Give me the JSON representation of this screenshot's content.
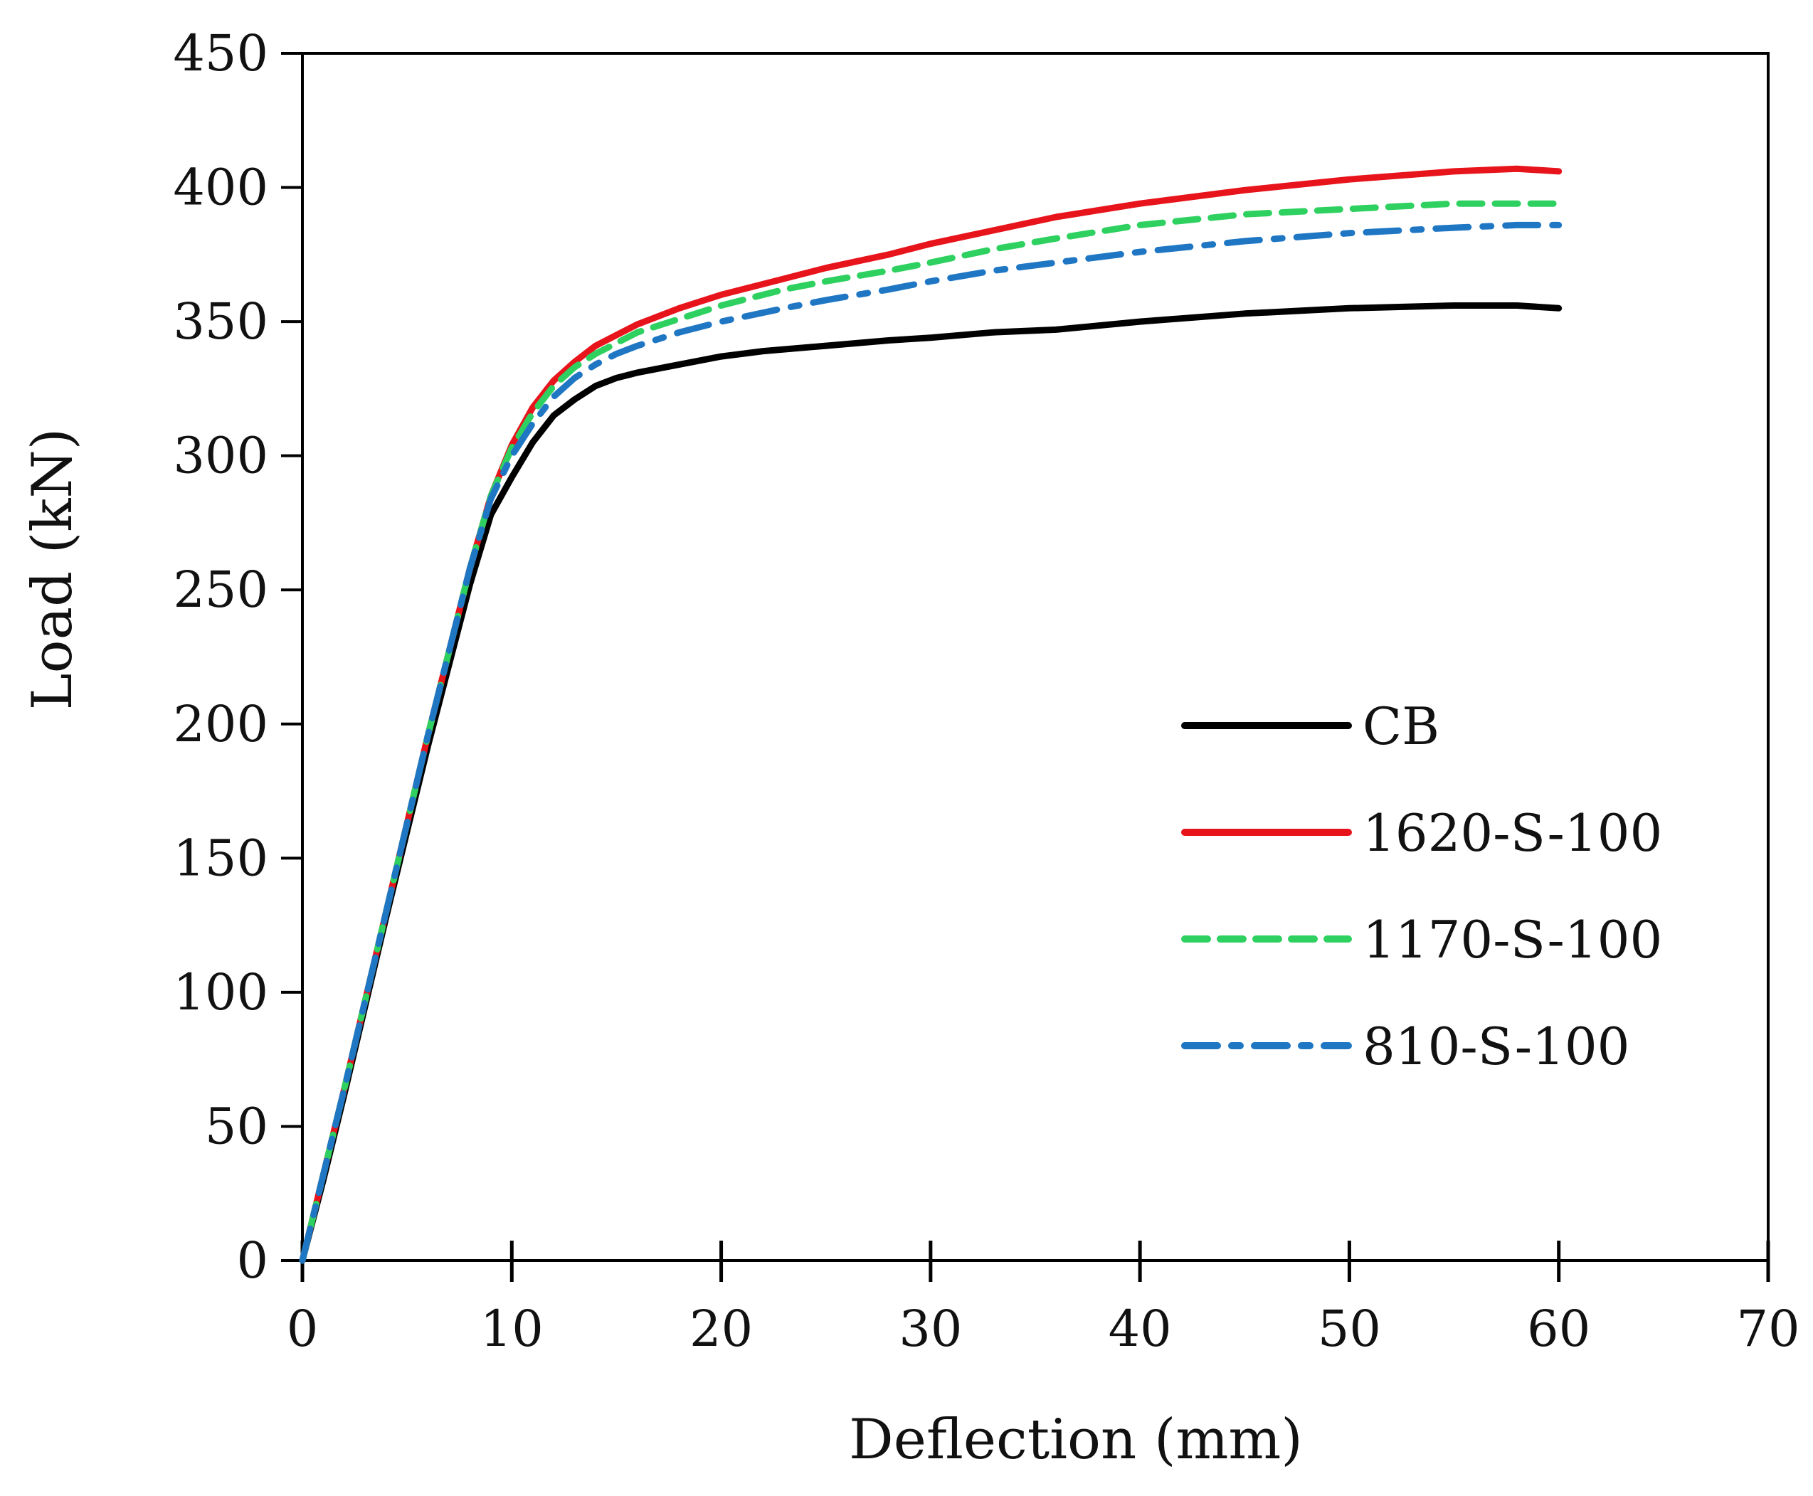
{
  "chart_data": {
    "type": "line",
    "title": "",
    "xlabel": "Deflection (mm)",
    "ylabel": "Load (kN)",
    "xlim": [
      0,
      70
    ],
    "ylim": [
      0,
      450
    ],
    "xticks": [
      "0",
      "10",
      "20",
      "30",
      "40",
      "50",
      "60",
      "70"
    ],
    "yticks": [
      "0",
      "50",
      "100",
      "150",
      "200",
      "250",
      "300",
      "350",
      "400",
      "450"
    ],
    "grid": false,
    "legend_position": "right",
    "series": [
      {
        "name": "CB",
        "color": "#000000",
        "dash": "solid",
        "points": [
          [
            0,
            0
          ],
          [
            1,
            30
          ],
          [
            2,
            62
          ],
          [
            3,
            95
          ],
          [
            4,
            128
          ],
          [
            5,
            160
          ],
          [
            6,
            192
          ],
          [
            7,
            222
          ],
          [
            8,
            252
          ],
          [
            9,
            278
          ],
          [
            10,
            292
          ],
          [
            11,
            305
          ],
          [
            12,
            315
          ],
          [
            13,
            321
          ],
          [
            14,
            326
          ],
          [
            15,
            329
          ],
          [
            16,
            331
          ],
          [
            18,
            334
          ],
          [
            20,
            337
          ],
          [
            22,
            339
          ],
          [
            25,
            341
          ],
          [
            28,
            343
          ],
          [
            30,
            344
          ],
          [
            33,
            346
          ],
          [
            36,
            347
          ],
          [
            40,
            350
          ],
          [
            45,
            353
          ],
          [
            50,
            355
          ],
          [
            55,
            356
          ],
          [
            58,
            356
          ],
          [
            60,
            355
          ]
        ]
      },
      {
        "name": "1620-S-100",
        "color": "#e8141b",
        "dash": "solid",
        "points": [
          [
            0,
            0
          ],
          [
            1,
            32
          ],
          [
            2,
            64
          ],
          [
            3,
            97
          ],
          [
            4,
            130
          ],
          [
            5,
            163
          ],
          [
            6,
            196
          ],
          [
            7,
            227
          ],
          [
            8,
            258
          ],
          [
            9,
            285
          ],
          [
            10,
            304
          ],
          [
            11,
            318
          ],
          [
            12,
            328
          ],
          [
            13,
            335
          ],
          [
            14,
            341
          ],
          [
            15,
            345
          ],
          [
            16,
            349
          ],
          [
            18,
            355
          ],
          [
            20,
            360
          ],
          [
            23,
            366
          ],
          [
            25,
            370
          ],
          [
            28,
            375
          ],
          [
            30,
            379
          ],
          [
            33,
            384
          ],
          [
            36,
            389
          ],
          [
            40,
            394
          ],
          [
            45,
            399
          ],
          [
            50,
            403
          ],
          [
            55,
            406
          ],
          [
            58,
            407
          ],
          [
            60,
            406
          ]
        ]
      },
      {
        "name": "1170-S-100",
        "color": "#2ed160",
        "dash": "dashed",
        "points": [
          [
            0,
            0
          ],
          [
            1,
            32
          ],
          [
            2,
            64
          ],
          [
            3,
            97
          ],
          [
            4,
            130
          ],
          [
            5,
            163
          ],
          [
            6,
            196
          ],
          [
            7,
            227
          ],
          [
            8,
            258
          ],
          [
            9,
            285
          ],
          [
            10,
            303
          ],
          [
            11,
            316
          ],
          [
            12,
            326
          ],
          [
            13,
            333
          ],
          [
            14,
            338
          ],
          [
            15,
            342
          ],
          [
            16,
            346
          ],
          [
            18,
            351
          ],
          [
            20,
            356
          ],
          [
            23,
            362
          ],
          [
            25,
            365
          ],
          [
            28,
            369
          ],
          [
            30,
            372
          ],
          [
            33,
            377
          ],
          [
            36,
            381
          ],
          [
            40,
            386
          ],
          [
            45,
            390
          ],
          [
            50,
            392
          ],
          [
            55,
            394
          ],
          [
            58,
            394
          ],
          [
            60,
            394
          ]
        ]
      },
      {
        "name": "810-S-100",
        "color": "#1f77c4",
        "dash": "dashdot",
        "points": [
          [
            0,
            0
          ],
          [
            1,
            32
          ],
          [
            2,
            64
          ],
          [
            3,
            97
          ],
          [
            4,
            130
          ],
          [
            5,
            163
          ],
          [
            6,
            196
          ],
          [
            7,
            227
          ],
          [
            8,
            258
          ],
          [
            9,
            284
          ],
          [
            10,
            300
          ],
          [
            11,
            312
          ],
          [
            12,
            322
          ],
          [
            13,
            329
          ],
          [
            14,
            334
          ],
          [
            15,
            338
          ],
          [
            16,
            341
          ],
          [
            18,
            346
          ],
          [
            20,
            350
          ],
          [
            23,
            355
          ],
          [
            25,
            358
          ],
          [
            28,
            362
          ],
          [
            30,
            365
          ],
          [
            33,
            369
          ],
          [
            36,
            372
          ],
          [
            40,
            376
          ],
          [
            45,
            380
          ],
          [
            50,
            383
          ],
          [
            55,
            385
          ],
          [
            58,
            386
          ],
          [
            60,
            386
          ]
        ]
      }
    ]
  }
}
